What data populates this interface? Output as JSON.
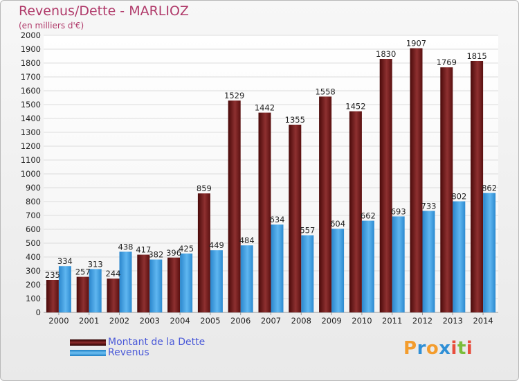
{
  "header": {
    "title": "Revenus/Dette - MARLIOZ",
    "subtitle": "(en milliers d'€)"
  },
  "legend": {
    "dette_label": "Montant de la Dette",
    "revenus_label": "Revenus"
  },
  "logo": {
    "text": "Proxiti",
    "letters": [
      {
        "ch": "P",
        "color": "#f39c2d"
      },
      {
        "ch": "r",
        "color": "#2f8fd6"
      },
      {
        "ch": "o",
        "color": "#f39c2d"
      },
      {
        "ch": "x",
        "color": "#2f8fd6"
      },
      {
        "ch": "i",
        "color": "#e84d3c"
      },
      {
        "ch": "t",
        "color": "#7bbd3a"
      },
      {
        "ch": "i",
        "color": "#e84d3c"
      }
    ]
  },
  "colors": {
    "dette": "#7a1c1c",
    "revenus": "#3a9ee4",
    "title": "#b03a6a",
    "legend_text": "#4a59d8"
  },
  "chart_data": {
    "type": "bar",
    "categories": [
      "2000",
      "2001",
      "2002",
      "2003",
      "2004",
      "2005",
      "2006",
      "2007",
      "2008",
      "2009",
      "2010",
      "2011",
      "2012",
      "2013",
      "2014"
    ],
    "series": [
      {
        "name": "Montant de la Dette",
        "values": [
          235,
          257,
          244,
          417,
          396,
          859,
          1529,
          1442,
          1355,
          1558,
          1452,
          1830,
          1907,
          1769,
          1815
        ]
      },
      {
        "name": "Revenus",
        "values": [
          334,
          313,
          438,
          382,
          425,
          449,
          484,
          634,
          557,
          604,
          662,
          693,
          733,
          802,
          862
        ]
      }
    ],
    "title": "Revenus/Dette - MARLIOZ",
    "ylabel": "(en milliers d'€)",
    "ylim": [
      0,
      2000
    ],
    "ytick_step": 100,
    "grid": true,
    "legend_position": "bottom-left"
  }
}
